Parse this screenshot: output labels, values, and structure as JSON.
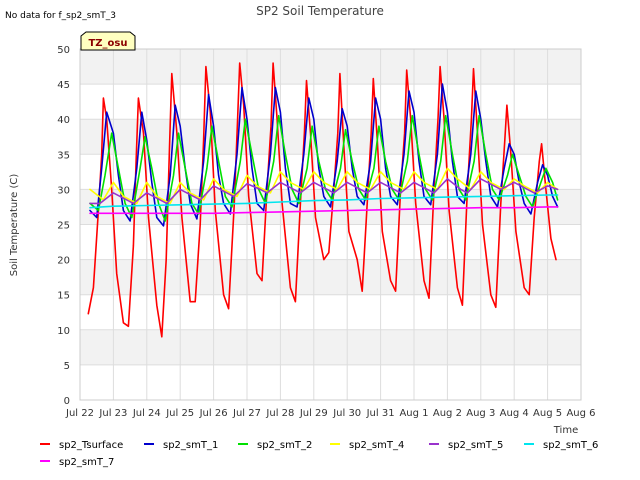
{
  "chart_data": {
    "type": "line",
    "title": "SP2 Soil Temperature",
    "note": "No data for f_sp2_smT_3",
    "badge": "TZ_osu",
    "xlabel": "Time",
    "ylabel": "Soil Temperature (C)",
    "xlim": [
      0,
      15
    ],
    "ylim": [
      0,
      50
    ],
    "xticks": [
      {
        "v": 0,
        "label": "Jul 22"
      },
      {
        "v": 1,
        "label": "Jul 23"
      },
      {
        "v": 2,
        "label": "Jul 24"
      },
      {
        "v": 3,
        "label": "Jul 25"
      },
      {
        "v": 4,
        "label": "Jul 26"
      },
      {
        "v": 5,
        "label": "Jul 27"
      },
      {
        "v": 6,
        "label": "Jul 28"
      },
      {
        "v": 7,
        "label": "Jul 29"
      },
      {
        "v": 8,
        "label": "Jul 30"
      },
      {
        "v": 9,
        "label": "Jul 31"
      },
      {
        "v": 10,
        "label": "Aug 1"
      },
      {
        "v": 11,
        "label": "Aug 2"
      },
      {
        "v": 12,
        "label": "Aug 3"
      },
      {
        "v": 13,
        "label": "Aug 4"
      },
      {
        "v": 14,
        "label": "Aug 5"
      },
      {
        "v": 15,
        "label": "Aug 6"
      }
    ],
    "yticks": [
      0,
      5,
      10,
      15,
      20,
      25,
      30,
      35,
      40,
      45,
      50
    ],
    "grid": true,
    "legend_position": "bottom",
    "series": [
      {
        "name": "sp2_Tsurface",
        "color": "#ff0000",
        "x": [
          0.25,
          0.4,
          0.55,
          0.65,
          0.7,
          0.8,
          0.95,
          1.1,
          1.3,
          1.45,
          1.6,
          1.68,
          1.75,
          1.9,
          2.05,
          2.3,
          2.45,
          2.58,
          2.68,
          2.75,
          2.9,
          3.05,
          3.3,
          3.45,
          3.6,
          3.7,
          3.77,
          3.9,
          4.05,
          4.3,
          4.45,
          4.62,
          4.72,
          4.78,
          4.9,
          5.05,
          5.3,
          5.45,
          5.6,
          5.72,
          5.78,
          5.9,
          6.05,
          6.3,
          6.45,
          6.6,
          6.72,
          6.78,
          6.9,
          7.05,
          7.3,
          7.45,
          7.6,
          7.72,
          7.78,
          7.9,
          8.05,
          8.3,
          8.45,
          8.6,
          8.72,
          8.78,
          8.9,
          9.05,
          9.3,
          9.45,
          9.6,
          9.72,
          9.78,
          9.9,
          10.05,
          10.3,
          10.45,
          10.6,
          10.72,
          10.78,
          10.9,
          11.05,
          11.3,
          11.45,
          11.6,
          11.72,
          11.78,
          11.9,
          12.05,
          12.3,
          12.45,
          12.6,
          12.72,
          12.78,
          12.9,
          13.05,
          13.3,
          13.45,
          13.6,
          13.75,
          13.82,
          13.95,
          14.1,
          14.25
        ],
        "y": [
          12.3,
          16,
          27,
          35,
          43,
          40,
          30,
          18,
          11,
          10.5,
          22,
          34,
          43,
          38,
          26,
          13.5,
          9,
          20,
          36,
          46.5,
          38,
          26,
          14,
          14,
          25,
          37,
          47.5,
          41,
          27,
          15,
          13,
          28,
          40,
          48,
          42,
          29,
          18,
          17,
          30,
          39,
          48,
          40,
          28,
          16,
          14,
          28,
          38,
          45.5,
          38,
          26,
          20,
          21,
          30,
          38,
          46.5,
          36,
          24,
          20,
          15.5,
          28,
          38,
          45.8,
          37,
          24,
          17,
          15.5,
          30,
          38,
          47,
          40,
          28,
          17,
          14.5,
          30,
          40,
          47.5,
          40,
          27,
          16,
          13.5,
          30,
          40,
          47.2,
          38,
          25,
          15,
          13.2,
          28,
          37,
          42,
          35,
          24,
          16,
          15,
          26,
          34,
          36.5,
          30,
          23,
          20
        ]
      },
      {
        "name": "sp2_smT_1",
        "color": "#0000cc",
        "x": [
          0.3,
          0.5,
          0.65,
          0.8,
          1.0,
          1.15,
          1.3,
          1.5,
          1.7,
          1.85,
          2.0,
          2.15,
          2.3,
          2.5,
          2.7,
          2.85,
          3.0,
          3.15,
          3.3,
          3.5,
          3.7,
          3.85,
          4.0,
          4.15,
          4.3,
          4.5,
          4.7,
          4.85,
          5.0,
          5.15,
          5.3,
          5.5,
          5.7,
          5.85,
          6.0,
          6.15,
          6.3,
          6.5,
          6.7,
          6.85,
          7.0,
          7.15,
          7.3,
          7.5,
          7.7,
          7.85,
          8.0,
          8.15,
          8.3,
          8.5,
          8.7,
          8.85,
          9.0,
          9.15,
          9.3,
          9.5,
          9.7,
          9.85,
          10.0,
          10.15,
          10.3,
          10.5,
          10.7,
          10.85,
          11.0,
          11.15,
          11.3,
          11.5,
          11.7,
          11.85,
          12.0,
          12.15,
          12.3,
          12.5,
          12.7,
          12.85,
          13.0,
          13.15,
          13.3,
          13.5,
          13.7,
          13.85,
          14.0,
          14.15,
          14.3
        ],
        "y": [
          27,
          26,
          33,
          41,
          38,
          32,
          27,
          25.5,
          33,
          41,
          37,
          31,
          26,
          24.8,
          32,
          42,
          39,
          33,
          28,
          25.8,
          34,
          43.5,
          39,
          32,
          28,
          26.5,
          35,
          44.5,
          40,
          33,
          28,
          27,
          35,
          44.5,
          41,
          33,
          28,
          27.5,
          35,
          43,
          40,
          33,
          29,
          27.5,
          34,
          41.5,
          39,
          33,
          29,
          27.8,
          34,
          43,
          40,
          33,
          29,
          27.8,
          35,
          44,
          41,
          34,
          29,
          27.8,
          35,
          45,
          41,
          34,
          29,
          28,
          35,
          44,
          40,
          34,
          29,
          27.5,
          33,
          36.5,
          35,
          31,
          28,
          26.5,
          31,
          33.5,
          32,
          29,
          27.5
        ]
      },
      {
        "name": "sp2_smT_2",
        "color": "#00e000",
        "x": [
          0.3,
          0.55,
          0.75,
          0.95,
          1.15,
          1.35,
          1.55,
          1.8,
          1.95,
          2.15,
          2.35,
          2.55,
          2.8,
          2.95,
          3.15,
          3.35,
          3.55,
          3.8,
          3.95,
          4.15,
          4.35,
          4.55,
          4.8,
          4.95,
          5.15,
          5.35,
          5.55,
          5.8,
          5.95,
          6.15,
          6.35,
          6.55,
          6.8,
          6.95,
          7.15,
          7.35,
          7.55,
          7.8,
          7.95,
          8.15,
          8.35,
          8.55,
          8.8,
          8.95,
          9.15,
          9.35,
          9.55,
          9.8,
          9.95,
          10.15,
          10.35,
          10.55,
          10.8,
          10.95,
          11.15,
          11.35,
          11.55,
          11.8,
          11.95,
          12.15,
          12.35,
          12.55,
          12.8,
          12.95,
          13.15,
          13.35,
          13.55,
          13.8,
          13.95,
          14.15,
          14.3
        ],
        "y": [
          28,
          27,
          32,
          38,
          33,
          28,
          26,
          33,
          37.5,
          33,
          28,
          25.5,
          32,
          38,
          33,
          28,
          26.5,
          33,
          39,
          34,
          29,
          27.5,
          34,
          40,
          35,
          30,
          28,
          34,
          40.5,
          35,
          30,
          28,
          33,
          39,
          34,
          30,
          28.5,
          33,
          38.5,
          34,
          30,
          28.5,
          33,
          39,
          34,
          30,
          28.5,
          34,
          40.5,
          35,
          30,
          28.5,
          34,
          40.5,
          35,
          30,
          28.5,
          34,
          40.5,
          35,
          30,
          28.5,
          32,
          35,
          32,
          29,
          27.5,
          31,
          33,
          31,
          28.5
        ]
      },
      {
        "name": "sp2_smT_4",
        "color": "#ffff00",
        "x": [
          0.3,
          0.7,
          1.0,
          1.3,
          1.7,
          2.0,
          2.3,
          2.7,
          3.0,
          3.3,
          3.7,
          4.0,
          4.3,
          4.7,
          5.0,
          5.3,
          5.7,
          6.0,
          6.3,
          6.7,
          7.0,
          7.3,
          7.7,
          8.0,
          8.3,
          8.7,
          9.0,
          9.3,
          9.7,
          10.0,
          10.3,
          10.7,
          11.0,
          11.3,
          11.7,
          12.0,
          12.3,
          12.7,
          13.0,
          13.3,
          13.7,
          14.0,
          14.3
        ],
        "y": [
          30,
          28.5,
          31,
          29,
          28,
          31,
          29,
          28,
          31,
          29.5,
          28.5,
          31.5,
          30,
          29,
          32,
          30.5,
          29.5,
          32.5,
          31,
          30,
          32.5,
          31,
          30,
          32.5,
          31,
          30,
          32.5,
          31,
          30,
          32.5,
          31,
          30,
          33,
          31.5,
          30,
          32.5,
          31,
          30,
          31.5,
          30.5,
          29.5,
          31,
          30
        ]
      },
      {
        "name": "sp2_smT_5",
        "color": "#9932cc",
        "x": [
          0.3,
          0.6,
          1.0,
          1.4,
          1.6,
          2.0,
          2.4,
          2.6,
          3.0,
          3.4,
          3.6,
          4.0,
          4.4,
          4.6,
          5.0,
          5.4,
          5.6,
          6.0,
          6.4,
          6.6,
          7.0,
          7.4,
          7.6,
          8.0,
          8.4,
          8.6,
          9.0,
          9.4,
          9.6,
          10.0,
          10.4,
          10.6,
          11.0,
          11.4,
          11.6,
          12.0,
          12.4,
          12.6,
          13.0,
          13.4,
          13.6,
          14.0,
          14.3
        ],
        "y": [
          28,
          28,
          29.5,
          28.5,
          28,
          29.5,
          28.5,
          28,
          30,
          29,
          28.5,
          30.5,
          29.5,
          29,
          30.8,
          30,
          29.5,
          31,
          30,
          29.5,
          31,
          30,
          29.5,
          31,
          30,
          29.5,
          31,
          30,
          29.5,
          31,
          30,
          29.5,
          31.5,
          30,
          29.5,
          31.5,
          30.5,
          30,
          31,
          30,
          29.5,
          30.5,
          30
        ]
      },
      {
        "name": "sp2_smT_6",
        "color": "#00e5ee",
        "x": [
          0.3,
          1.0,
          2.0,
          3.0,
          4.0,
          5.0,
          6.0,
          7.0,
          8.0,
          9.0,
          10.0,
          11.0,
          12.0,
          13.0,
          14.0,
          14.3
        ],
        "y": [
          27.4,
          27.6,
          27.7,
          27.8,
          27.9,
          28.0,
          28.2,
          28.4,
          28.5,
          28.7,
          28.8,
          28.9,
          29.0,
          29.1,
          29.2,
          29.2
        ]
      },
      {
        "name": "sp2_smT_7",
        "color": "#ff00ff",
        "x": [
          0.3,
          1.0,
          2.0,
          3.0,
          4.0,
          5.0,
          6.0,
          7.0,
          8.0,
          9.0,
          10.0,
          11.0,
          12.0,
          13.0,
          14.0,
          14.3
        ],
        "y": [
          26.6,
          26.6,
          26.6,
          26.6,
          26.6,
          26.7,
          26.8,
          26.9,
          27.0,
          27.1,
          27.2,
          27.3,
          27.4,
          27.4,
          27.5,
          27.5
        ]
      }
    ]
  }
}
